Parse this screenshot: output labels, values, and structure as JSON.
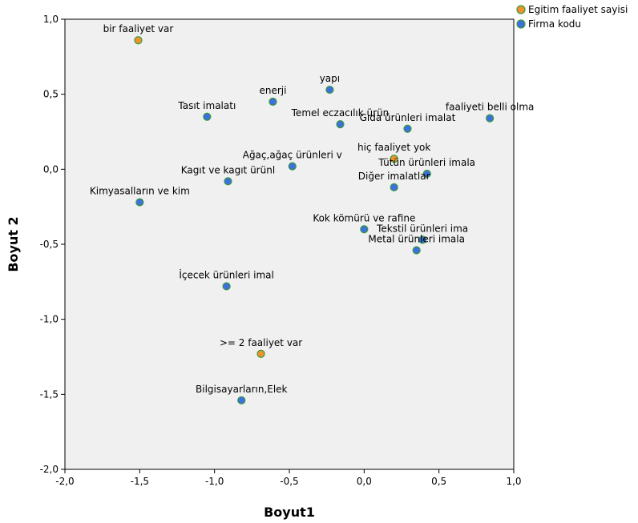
{
  "chart_data": {
    "type": "scatter",
    "xlabel": "Boyut1",
    "ylabel": "Boyut 2",
    "xlim": [
      -2.0,
      1.0
    ],
    "ylim": [
      -2.0,
      1.0
    ],
    "xticks": [
      "-2,0",
      "-1,5",
      "-1,0",
      "-0,5",
      "0,0",
      "0,5",
      "1,0"
    ],
    "yticks": [
      "-2,0",
      "-1,5",
      "-1,0",
      "-0,5",
      "0,0",
      "0,5",
      "1,0"
    ],
    "grid": false,
    "legend_position": "top-right",
    "series": [
      {
        "name": "Egitim faaliyet sayisi",
        "color": "#f0922e",
        "points": [
          {
            "label": "bir faaliyet var",
            "x": -1.51,
            "y": 0.86
          },
          {
            "label": "hiç faaliyet yok",
            "x": 0.2,
            "y": 0.07
          },
          {
            "label": ">= 2 faaliyet var",
            "x": -0.69,
            "y": -1.23
          }
        ]
      },
      {
        "name": "Firma kodu",
        "color": "#3d6fe0",
        "points": [
          {
            "label": "yapı",
            "x": -0.23,
            "y": 0.53
          },
          {
            "label": "enerji",
            "x": -0.61,
            "y": 0.45
          },
          {
            "label": "Tasıt imalatı",
            "x": -1.05,
            "y": 0.35
          },
          {
            "label": "faaliyeti belli olma",
            "x": 0.84,
            "y": 0.34
          },
          {
            "label": "Temel eczacılık ürün",
            "x": -0.16,
            "y": 0.3
          },
          {
            "label": "Gıda ürünleri imalat",
            "x": 0.29,
            "y": 0.27
          },
          {
            "label": "Ağaç,ağaç ürünleri v",
            "x": -0.48,
            "y": 0.02
          },
          {
            "label": "Tütün ürünleri imala",
            "x": 0.42,
            "y": -0.03
          },
          {
            "label": "Kagıt ve kagıt ürünl",
            "x": -0.91,
            "y": -0.08
          },
          {
            "label": "Diğer imalatlar",
            "x": 0.2,
            "y": -0.12
          },
          {
            "label": "Kimyasalların ve kim",
            "x": -1.5,
            "y": -0.22
          },
          {
            "label": "Kok kömürü ve rafine",
            "x": 0.0,
            "y": -0.4
          },
          {
            "label": "Tekstil ürünleri ima",
            "x": 0.39,
            "y": -0.47
          },
          {
            "label": "Metal ürünleri imala",
            "x": 0.35,
            "y": -0.54
          },
          {
            "label": "İçecek ürünleri imal",
            "x": -0.92,
            "y": -0.78
          },
          {
            "label": "Bilgisayarların,Elek",
            "x": -0.82,
            "y": -1.54
          }
        ]
      }
    ]
  }
}
